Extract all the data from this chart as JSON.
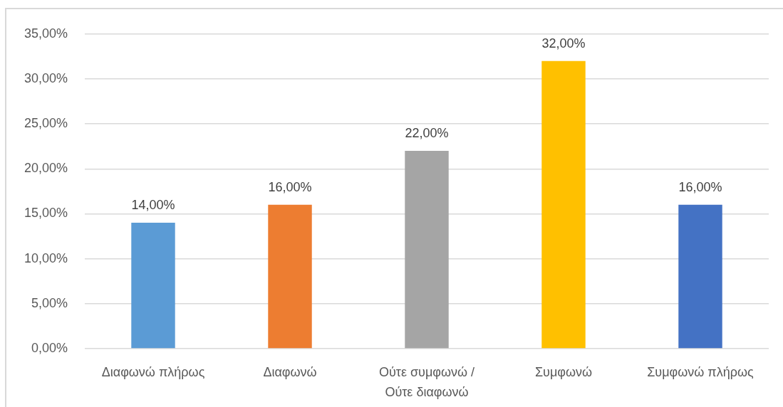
{
  "chart_data": {
    "type": "bar",
    "categories": [
      "Διαφωνώ πλήρως",
      "Διαφωνώ",
      "Ούτε συμφωνώ / Ούτε διαφωνώ",
      "Συμφωνώ",
      "Συμφωνώ πλήρως"
    ],
    "values": [
      14,
      16,
      22,
      32,
      16
    ],
    "colors": [
      "#5b9bd5",
      "#ed7d31",
      "#a5a5a5",
      "#ffc000",
      "#4472c4"
    ],
    "value_labels": [
      "14,00%",
      "16,00%",
      "22,00%",
      "32,00%",
      "16,00%"
    ],
    "ylim": [
      0,
      35
    ],
    "yticks": [
      {
        "value": 0,
        "label": "0,00%"
      },
      {
        "value": 5,
        "label": "5,00%"
      },
      {
        "value": 10,
        "label": "10,00%"
      },
      {
        "value": 15,
        "label": "15,00%"
      },
      {
        "value": 20,
        "label": "20,00%"
      },
      {
        "value": 25,
        "label": "25,00%"
      },
      {
        "value": 30,
        "label": "30,00%"
      },
      {
        "value": 35,
        "label": "35,00%"
      }
    ],
    "grid": "y"
  }
}
